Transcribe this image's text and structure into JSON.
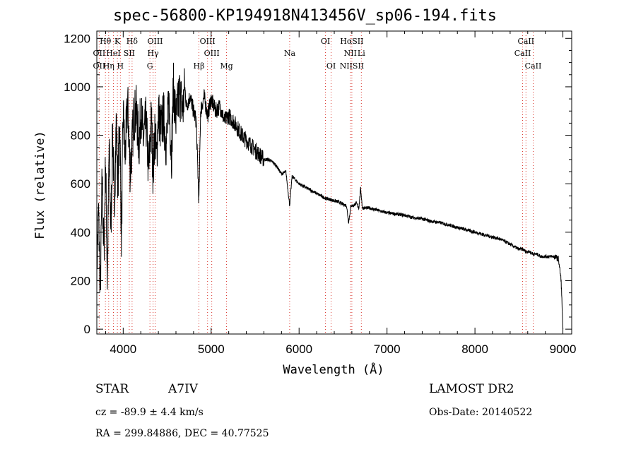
{
  "chart_data": {
    "type": "line",
    "title": "spec-56800-KP194918N413456V_sp06-194.fits",
    "xlabel": "Wavelength (Å)",
    "ylabel": "Flux (relative)",
    "xlim": [
      3700,
      9100
    ],
    "ylim": [
      -20,
      1230
    ],
    "xticks": [
      4000,
      5000,
      6000,
      7000,
      8000,
      9000
    ],
    "yticks": [
      0,
      200,
      400,
      600,
      800,
      1000,
      1200
    ],
    "grid": false,
    "series": [
      {
        "x": [
          3700,
          3720,
          3740,
          3760,
          3780,
          3800,
          3820,
          3840,
          3860,
          3880,
          3900,
          3920,
          3940,
          3960,
          3980,
          4000,
          4020,
          4050,
          4080,
          4101,
          4120,
          4150,
          4180,
          4200,
          4230,
          4260,
          4290,
          4320,
          4340,
          4360,
          4380,
          4400,
          4430,
          4460,
          4490,
          4520,
          4550,
          4570,
          4600,
          4640,
          4680,
          4700,
          4720,
          4760,
          4800,
          4830,
          4861,
          4880,
          4920,
          4960,
          5000,
          5050,
          5100,
          5150,
          5200,
          5250,
          5300,
          5350,
          5400,
          5450,
          5500,
          5550,
          5600,
          5650,
          5700,
          5750,
          5800,
          5850,
          5893,
          5920,
          5950,
          6000,
          6050,
          6100,
          6150,
          6200,
          6250,
          6300,
          6350,
          6400,
          6450,
          6500,
          6540,
          6563,
          6590,
          6620,
          6650,
          6680,
          6700,
          6720,
          6750,
          6800,
          6850,
          6900,
          6950,
          7000,
          7100,
          7200,
          7300,
          7400,
          7500,
          7600,
          7700,
          7800,
          7900,
          8000,
          8100,
          8200,
          8300,
          8400,
          8450,
          8500,
          8542,
          8580,
          8620,
          8662,
          8700,
          8750,
          8800,
          8850,
          8900,
          8950,
          8980,
          9000
        ],
        "y": [
          250,
          480,
          150,
          620,
          300,
          700,
          200,
          760,
          400,
          820,
          500,
          850,
          600,
          870,
          380,
          900,
          700,
          940,
          650,
          760,
          880,
          900,
          760,
          900,
          780,
          860,
          640,
          880,
          640,
          820,
          700,
          900,
          820,
          880,
          760,
          940,
          720,
          1000,
          860,
          980,
          900,
          1000,
          920,
          960,
          900,
          860,
          520,
          900,
          960,
          880,
          950,
          900,
          920,
          860,
          880,
          860,
          830,
          800,
          780,
          760,
          740,
          720,
          700,
          700,
          690,
          670,
          640,
          650,
          510,
          630,
          620,
          600,
          590,
          580,
          570,
          560,
          550,
          540,
          535,
          530,
          525,
          515,
          510,
          440,
          510,
          510,
          520,
          500,
          580,
          500,
          500,
          500,
          495,
          490,
          485,
          480,
          475,
          470,
          460,
          455,
          445,
          440,
          430,
          420,
          410,
          400,
          390,
          380,
          370,
          350,
          340,
          330,
          330,
          320,
          320,
          310,
          310,
          300,
          300,
          300,
          300,
          290,
          200,
          0
        ]
      }
    ],
    "lines": [
      {
        "label": "Hθ",
        "x": 3798,
        "row": 1
      },
      {
        "label": "K",
        "x": 3934,
        "row": 1
      },
      {
        "label": "Hδ",
        "x": 4101,
        "row": 1
      },
      {
        "label": "OIII",
        "x": 4363,
        "row": 1
      },
      {
        "label": "OIII",
        "x": 4959,
        "row": 1
      },
      {
        "label": "OI",
        "x": 6300,
        "row": 1
      },
      {
        "label": "HαSII",
        "x": 6600,
        "row": 1
      },
      {
        "label": "CaII",
        "x": 8580,
        "row": 1
      },
      {
        "label": "OII",
        "x": 3727,
        "row": 2
      },
      {
        "label": "HeI",
        "x": 3889,
        "row": 2
      },
      {
        "label": "SII",
        "x": 4069,
        "row": 2
      },
      {
        "label": "Hγ",
        "x": 4340,
        "row": 2
      },
      {
        "label": "OIII",
        "x": 5007,
        "row": 2
      },
      {
        "label": "Na",
        "x": 5893,
        "row": 2
      },
      {
        "label": "NII",
        "x": 6583,
        "row": 2
      },
      {
        "label": "Li",
        "x": 6708,
        "row": 2
      },
      {
        "label": "CaII",
        "x": 8542,
        "row": 2
      },
      {
        "label": "OII",
        "x": 3727,
        "row": 3
      },
      {
        "label": "Hη",
        "x": 3835,
        "row": 3
      },
      {
        "label": "H",
        "x": 3968,
        "row": 3
      },
      {
        "label": "G",
        "x": 4304,
        "row": 3
      },
      {
        "label": "Hβ",
        "x": 4861,
        "row": 3
      },
      {
        "label": "Mg",
        "x": 5175,
        "row": 3
      },
      {
        "label": "OI",
        "x": 6364,
        "row": 3
      },
      {
        "label": "NIISII",
        "x": 6600,
        "row": 3
      },
      {
        "label": "CaII",
        "x": 8662,
        "row": 3
      }
    ]
  },
  "info": {
    "object_class": "STAR",
    "subclass": "A7IV",
    "survey": "LAMOST DR2",
    "redshift": "cz = -89.9 ± 4.4 km/s",
    "obs_date": "Obs-Date: 20140522",
    "coords": "RA = 299.84886, DEC =  40.77525"
  }
}
